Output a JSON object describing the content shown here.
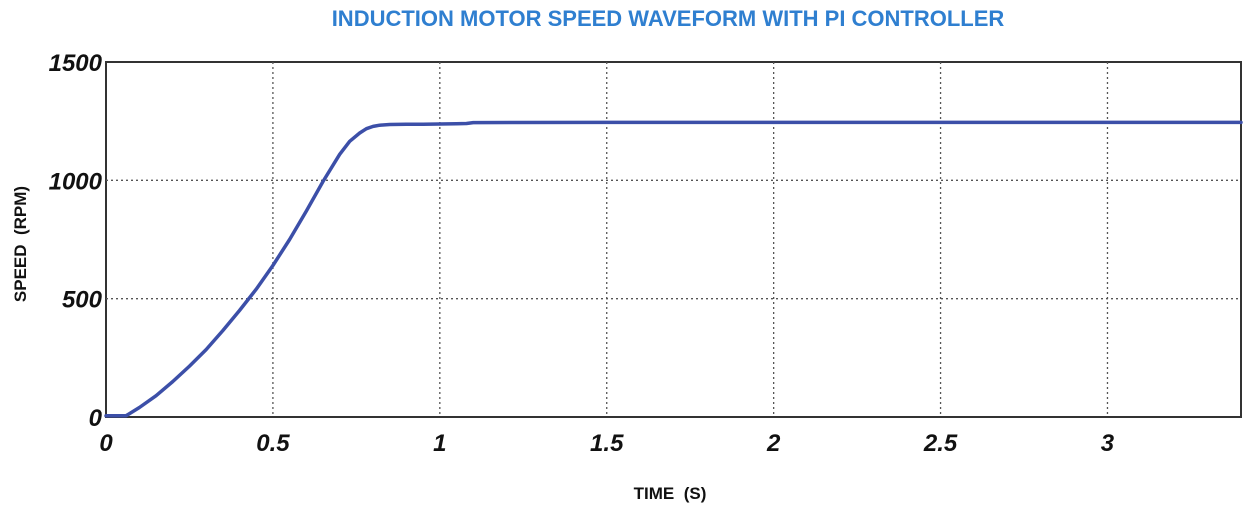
{
  "chart_data": {
    "type": "line",
    "title": "INDUCTION MOTOR SPEED WAVEFORM WITH PI CONTROLLER",
    "xlabel": "TIME  (S)",
    "ylabel": "SPEED  (RPM)",
    "xlim": [
      0,
      3.4
    ],
    "ylim": [
      0,
      1500
    ],
    "xticks": [
      0,
      0.5,
      1,
      1.5,
      2,
      2.5,
      3
    ],
    "xtick_labels": [
      "0",
      "0.5",
      "1",
      "1.5",
      "2",
      "2.5",
      "3"
    ],
    "yticks": [
      0,
      500,
      1000,
      1500
    ],
    "ytick_labels": [
      "0",
      "500",
      "1000",
      "1500"
    ],
    "grid": true,
    "line_color": "#3c4fa8",
    "series": [
      {
        "x": [
          0,
          0.06,
          0.1,
          0.15,
          0.2,
          0.25,
          0.3,
          0.35,
          0.4,
          0.45,
          0.5,
          0.55,
          0.6,
          0.65,
          0.7,
          0.73,
          0.76,
          0.78,
          0.8,
          0.82,
          0.85,
          0.9,
          0.95,
          1.0,
          1.05,
          1.08,
          1.1,
          1.5,
          2.0,
          2.5,
          3.0,
          3.4
        ],
        "y": [
          5,
          5,
          40,
          90,
          150,
          215,
          285,
          365,
          450,
          540,
          640,
          750,
          870,
          995,
          1110,
          1165,
          1200,
          1218,
          1228,
          1233,
          1236,
          1237,
          1237,
          1238,
          1239,
          1240,
          1244,
          1245,
          1245,
          1245,
          1245,
          1245
        ]
      }
    ]
  }
}
